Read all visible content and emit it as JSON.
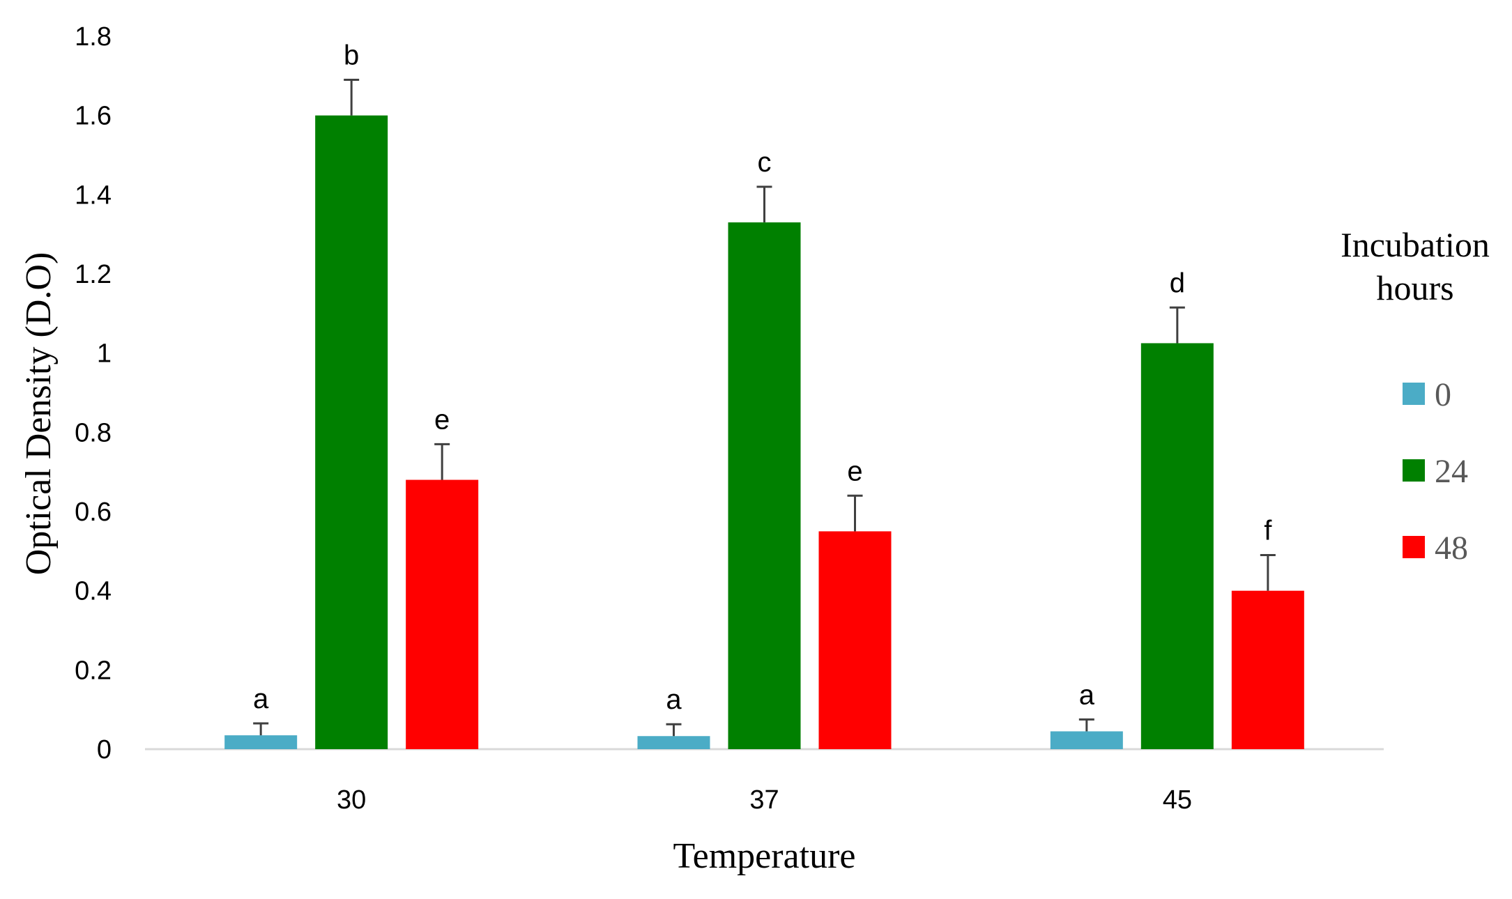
{
  "chart_data": {
    "type": "bar",
    "xlabel": "Temperature",
    "ylabel": "Optical Density (D.O)",
    "categories": [
      "30",
      "37",
      "45"
    ],
    "ylim": [
      0,
      1.8
    ],
    "yticks": [
      "0",
      "0.2",
      "0.4",
      "0.6",
      "0.8",
      "1",
      "1.2",
      "1.4",
      "1.6",
      "1.8"
    ],
    "grid": false,
    "legend": {
      "title": "Incubation hours",
      "title_lines": [
        "Incubation",
        "hours"
      ],
      "placement": "right"
    },
    "series": [
      {
        "name": "0",
        "color": "#4BACC6",
        "values": [
          0.035,
          0.033,
          0.045
        ],
        "errors": [
          0.03,
          0.03,
          0.03
        ],
        "letters": [
          "a",
          "a",
          "a"
        ]
      },
      {
        "name": "24",
        "color": "#008000",
        "values": [
          1.6,
          1.33,
          1.025
        ],
        "errors": [
          0.09,
          0.09,
          0.09
        ],
        "letters": [
          "b",
          "c",
          "d"
        ]
      },
      {
        "name": "48",
        "color": "#FF0000",
        "values": [
          0.68,
          0.55,
          0.4
        ],
        "errors": [
          0.09,
          0.09,
          0.09
        ],
        "letters": [
          "e",
          "e",
          "f"
        ]
      }
    ]
  }
}
